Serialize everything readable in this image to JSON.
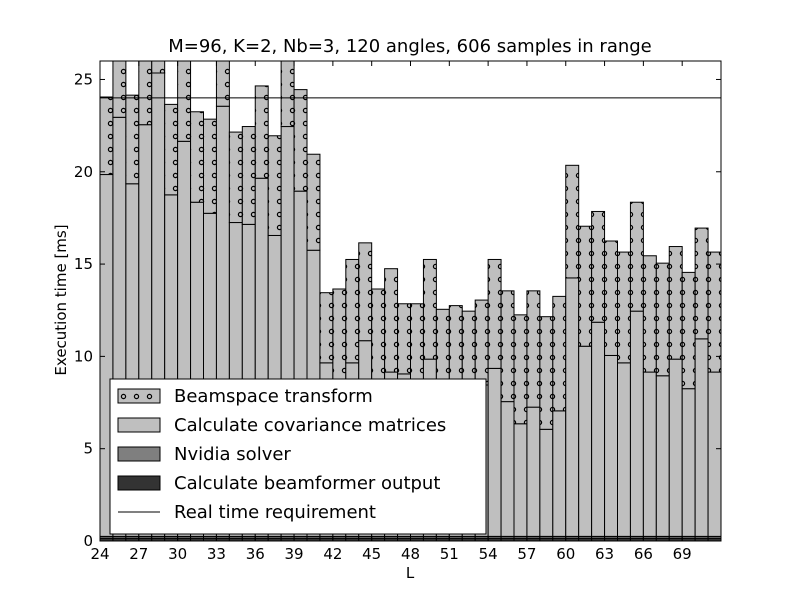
{
  "chart_data": {
    "type": "bar",
    "stacked": true,
    "title": "M=96, K=2, Nb=3, 120 angles, 606 samples in range",
    "xlabel": "L",
    "ylabel": "Execution time [ms]",
    "x": [
      24,
      25,
      26,
      27,
      28,
      29,
      30,
      31,
      32,
      33,
      34,
      35,
      36,
      37,
      38,
      39,
      40,
      41,
      42,
      43,
      44,
      45,
      46,
      47,
      48,
      49,
      50,
      51,
      52,
      53,
      54,
      55,
      56,
      57,
      58,
      59,
      60,
      61,
      62,
      63,
      64,
      65,
      66,
      67,
      68,
      69,
      70,
      71
    ],
    "xticks": [
      24,
      27,
      30,
      33,
      36,
      39,
      42,
      45,
      48,
      51,
      54,
      57,
      60,
      63,
      66,
      69
    ],
    "ylim": [
      0,
      26
    ],
    "yticks": [
      0,
      5,
      10,
      15,
      20,
      25
    ],
    "grid": false,
    "legend_position": "lower-left",
    "series": [
      {
        "name": "Calculate beamformer output",
        "color": "#333333",
        "values": [
          0.15,
          0.15,
          0.15,
          0.15,
          0.15,
          0.15,
          0.15,
          0.15,
          0.15,
          0.15,
          0.15,
          0.15,
          0.15,
          0.15,
          0.15,
          0.15,
          0.15,
          0.15,
          0.15,
          0.15,
          0.15,
          0.15,
          0.15,
          0.15,
          0.15,
          0.15,
          0.15,
          0.15,
          0.15,
          0.15,
          0.15,
          0.15,
          0.15,
          0.15,
          0.15,
          0.15,
          0.15,
          0.15,
          0.15,
          0.15,
          0.15,
          0.15,
          0.15,
          0.15,
          0.15,
          0.15,
          0.15,
          0.15
        ]
      },
      {
        "name": "Nvidia solver",
        "color": "#7f7f7f",
        "values": [
          0.1,
          0.1,
          0.1,
          0.1,
          0.1,
          0.1,
          0.1,
          0.1,
          0.1,
          0.1,
          0.1,
          0.1,
          0.1,
          0.1,
          0.1,
          0.1,
          0.1,
          0.1,
          0.1,
          0.1,
          0.1,
          0.1,
          0.1,
          0.1,
          0.1,
          0.1,
          0.1,
          0.1,
          0.1,
          0.1,
          0.1,
          0.1,
          0.1,
          0.1,
          0.1,
          0.1,
          0.1,
          0.1,
          0.1,
          0.1,
          0.1,
          0.1,
          0.1,
          0.1,
          0.1,
          0.1,
          0.1,
          0.1
        ]
      },
      {
        "name": "Calculate covariance matrices",
        "color": "#bfbfbf",
        "values": [
          19.6,
          22.7,
          19.1,
          22.3,
          25.1,
          18.5,
          21.4,
          18.1,
          17.5,
          23.3,
          17.0,
          16.9,
          19.4,
          16.3,
          22.2,
          18.7,
          15.5,
          9.4,
          7.8,
          9.4,
          10.6,
          8.1,
          8.9,
          8.8,
          7.8,
          9.6,
          8.2,
          8.3,
          8.0,
          8.2,
          9.1,
          7.3,
          6.1,
          7.0,
          5.8,
          6.8,
          14.0,
          10.3,
          11.6,
          9.8,
          9.4,
          12.2,
          8.9,
          8.7,
          9.6,
          8.0,
          10.7,
          8.9
        ]
      },
      {
        "name": "Beamspace transform",
        "color": "#bfbfbf",
        "hatch": "dots",
        "values": [
          4.2,
          3.3,
          4.8,
          3.6,
          0.8,
          4.9,
          4.4,
          4.9,
          5.1,
          2.7,
          4.9,
          5.3,
          5.0,
          5.4,
          3.8,
          5.5,
          5.2,
          3.8,
          5.6,
          5.6,
          5.3,
          5.3,
          5.6,
          3.8,
          4.8,
          5.4,
          4.1,
          4.2,
          4.2,
          4.6,
          5.9,
          6.0,
          5.9,
          6.3,
          6.1,
          6.2,
          6.1,
          6.5,
          6.0,
          6.2,
          6.0,
          5.9,
          6.3,
          6.1,
          6.1,
          6.3,
          6.0,
          6.5
        ]
      }
    ],
    "real_time_requirement": {
      "name": "Real time requirement",
      "value": 24.0,
      "color": "#000000"
    }
  }
}
